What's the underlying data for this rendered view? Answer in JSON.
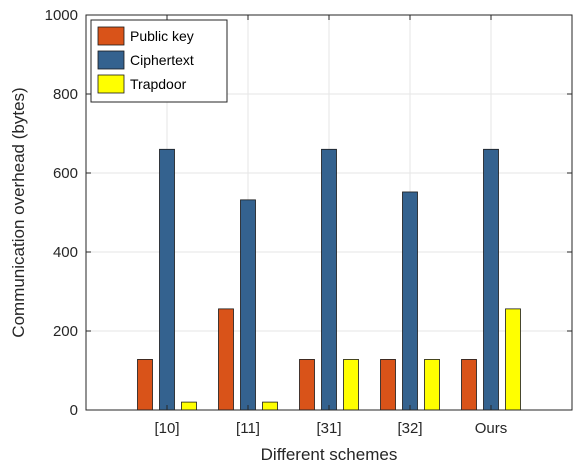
{
  "chart_data": {
    "type": "bar",
    "categories": [
      "[10]",
      "[11]",
      "[31]",
      "[32]",
      "Ours"
    ],
    "series": [
      {
        "name": "Public key",
        "color": "#D95319",
        "values": [
          128,
          256,
          128,
          128,
          128
        ]
      },
      {
        "name": "Ciphertext",
        "color": "#34628F",
        "values": [
          660,
          532,
          660,
          552,
          660
        ]
      },
      {
        "name": "Trapdoor",
        "color": "#FFFF00",
        "values": [
          20,
          20,
          128,
          128,
          256
        ]
      }
    ],
    "xlabel": "Different schemes",
    "ylabel": "Communication overhead (bytes)",
    "ylim": [
      0,
      1000
    ],
    "yticks": [
      0,
      200,
      400,
      600,
      800,
      1000
    ],
    "grid": true,
    "legend_position": "top-left"
  }
}
